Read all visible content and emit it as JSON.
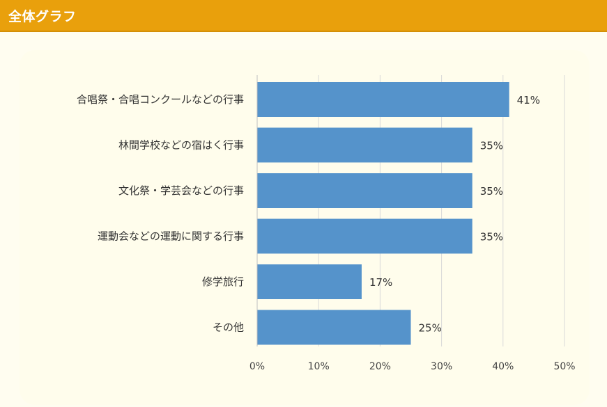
{
  "header": {
    "title": "全体グラフ"
  },
  "colors": {
    "header_bg": "#e9a00c",
    "bar": "#5593cb",
    "grid": "#d9d9d9",
    "axis": "#bfbfbf"
  },
  "chart_data": {
    "type": "bar",
    "orientation": "horizontal",
    "title": "",
    "xlabel": "",
    "ylabel": "",
    "categories": [
      "合唱祭・合唱コンクールなどの行事",
      "林間学校などの宿はく行事",
      "文化祭・学芸会などの行事",
      "運動会などの運動に関する行事",
      "修学旅行",
      "その他"
    ],
    "values": [
      41,
      35,
      35,
      35,
      17,
      25
    ],
    "value_labels": [
      "41%",
      "35%",
      "35%",
      "35%",
      "17%",
      "25%"
    ],
    "xlim": [
      0,
      50
    ],
    "xticks": [
      0,
      10,
      20,
      30,
      40,
      50
    ],
    "xtick_labels": [
      "0%",
      "10%",
      "20%",
      "30%",
      "40%",
      "50%"
    ],
    "grid": true,
    "legend": "none"
  }
}
